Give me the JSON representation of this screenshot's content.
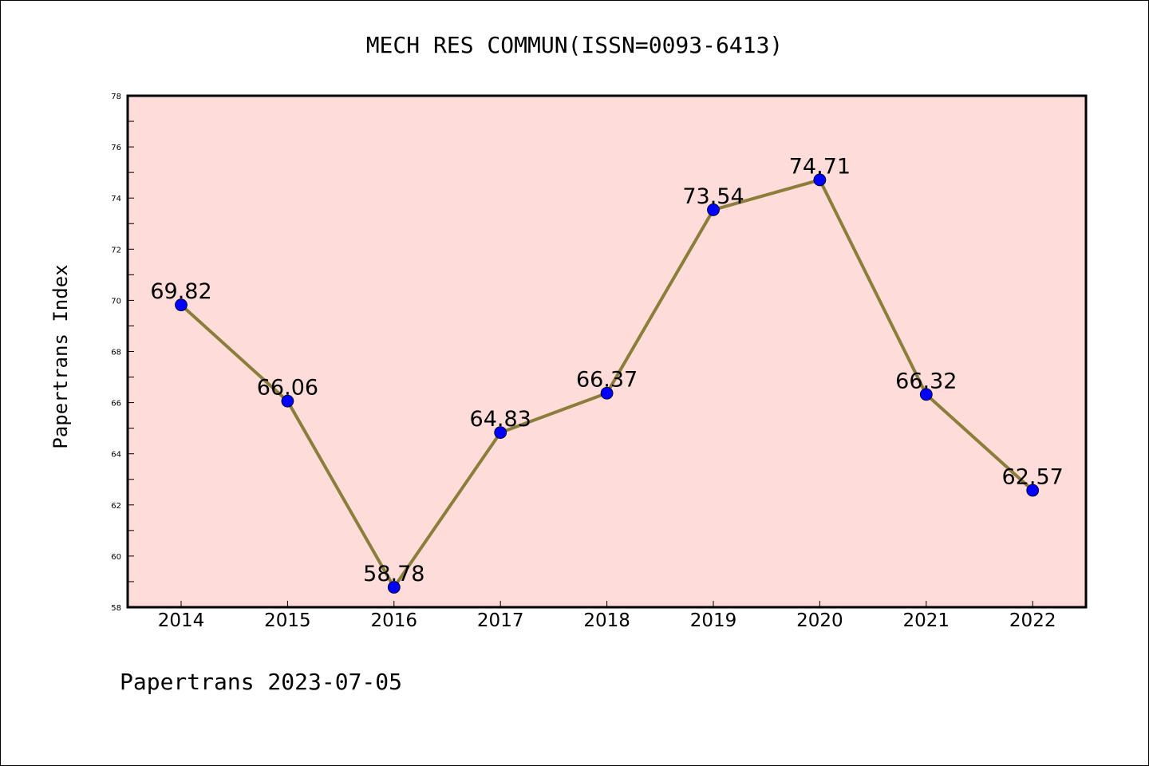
{
  "chart_data": {
    "type": "line",
    "title": "MECH RES COMMUN(ISSN=0093-6413)",
    "xlabel": "",
    "ylabel": "Papertrans Index",
    "categories": [
      "2014",
      "2015",
      "2016",
      "2017",
      "2018",
      "2019",
      "2020",
      "2021",
      "2022"
    ],
    "series": [
      {
        "values": [
          69.82,
          66.06,
          58.78,
          64.83,
          66.37,
          73.54,
          74.71,
          66.32,
          62.57
        ],
        "data_labels": [
          "69.82",
          "66.06",
          "58.78",
          "64.83",
          "66.37",
          "73.54",
          "74.71",
          "66.32",
          "62.57"
        ]
      }
    ],
    "ylim": [
      58,
      78
    ],
    "y_ticks": [
      "58",
      "60",
      "62",
      "64",
      "66",
      "68",
      "70",
      "72",
      "74",
      "76",
      "78"
    ],
    "grid": false,
    "legend": "none",
    "colors": {
      "plot_background": "#fddcd9",
      "line": "#8b7d3a",
      "marker": "#0000ff",
      "axis": "#000000"
    }
  },
  "footer": "Papertrans 2023-07-05"
}
